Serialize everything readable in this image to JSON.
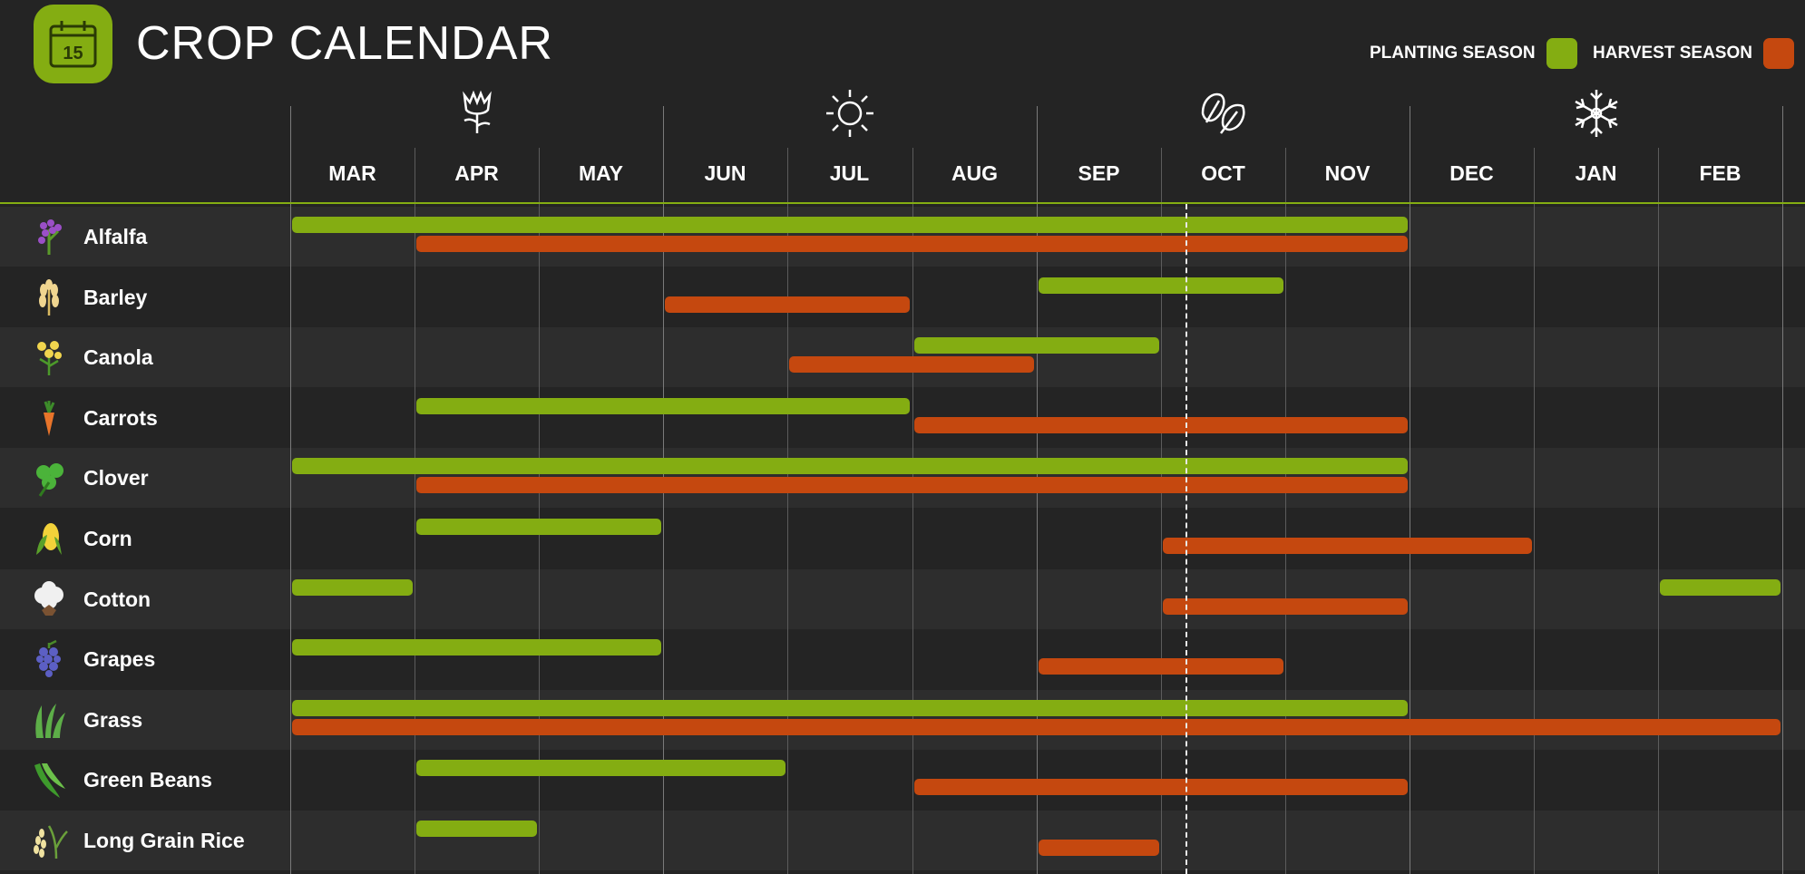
{
  "header": {
    "title": "CROP CALENDAR",
    "calendar_icon": "calendar-icon",
    "calendar_day": "15"
  },
  "legend": {
    "planting_label": "PLANTING SEASON",
    "planting_color": "#84ad12",
    "harvest_label": "HARVEST SEASON",
    "harvest_color": "#c5480f"
  },
  "months": [
    "MAR",
    "APR",
    "MAY",
    "JUN",
    "JUL",
    "AUG",
    "SEP",
    "OCT",
    "NOV",
    "DEC",
    "JAN",
    "FEB"
  ],
  "seasons": [
    {
      "icon": "tulip-icon",
      "start_month": 0
    },
    {
      "icon": "sun-icon",
      "start_month": 3
    },
    {
      "icon": "leaves-icon",
      "start_month": 6
    },
    {
      "icon": "snowflake-icon",
      "start_month": 9
    }
  ],
  "today_marker": {
    "month_position": 7.2
  },
  "crops": [
    {
      "name": "Alfalfa",
      "icon": "alfalfa-icon",
      "planting": [
        [
          0,
          9
        ]
      ],
      "harvest": [
        [
          1,
          9
        ]
      ]
    },
    {
      "name": "Barley",
      "icon": "barley-icon",
      "planting": [
        [
          6,
          8
        ]
      ],
      "harvest": [
        [
          3,
          5
        ]
      ]
    },
    {
      "name": "Canola",
      "icon": "canola-icon",
      "planting": [
        [
          5,
          7
        ]
      ],
      "harvest": [
        [
          4,
          6
        ]
      ]
    },
    {
      "name": "Carrots",
      "icon": "carrot-icon",
      "planting": [
        [
          1,
          5
        ]
      ],
      "harvest": [
        [
          5,
          9
        ]
      ]
    },
    {
      "name": "Clover",
      "icon": "clover-icon",
      "planting": [
        [
          0,
          9
        ]
      ],
      "harvest": [
        [
          1,
          9
        ]
      ]
    },
    {
      "name": "Corn",
      "icon": "corn-icon",
      "planting": [
        [
          1,
          3
        ]
      ],
      "harvest": [
        [
          7,
          10
        ]
      ]
    },
    {
      "name": "Cotton",
      "icon": "cotton-icon",
      "planting": [
        [
          0,
          1
        ],
        [
          11,
          12
        ]
      ],
      "harvest": [
        [
          7,
          9
        ]
      ]
    },
    {
      "name": "Grapes",
      "icon": "grapes-icon",
      "planting": [
        [
          0,
          3
        ]
      ],
      "harvest": [
        [
          6,
          8
        ]
      ]
    },
    {
      "name": "Grass",
      "icon": "grass-icon",
      "planting": [
        [
          0,
          9
        ]
      ],
      "harvest": [
        [
          0,
          12
        ]
      ]
    },
    {
      "name": "Green Beans",
      "icon": "green-beans-icon",
      "planting": [
        [
          1,
          4
        ]
      ],
      "harvest": [
        [
          5,
          9
        ]
      ]
    },
    {
      "name": "Long Grain Rice",
      "icon": "rice-icon",
      "planting": [
        [
          1,
          2
        ]
      ],
      "harvest": [
        [
          6,
          7
        ]
      ]
    }
  ]
}
